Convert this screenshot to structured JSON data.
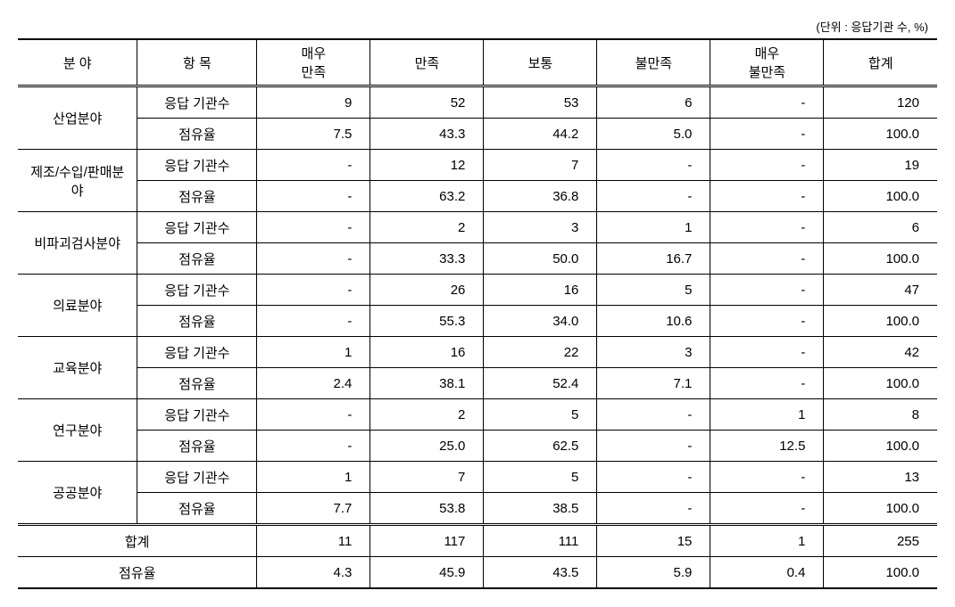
{
  "unit_caption": "(단위 : 응답기관 수, %)",
  "columns": {
    "category": "분 야",
    "item": "항 목",
    "very_satisfied": "매우\n만족",
    "satisfied": "만족",
    "normal": "보통",
    "dissatisfied": "불만족",
    "very_dissatisfied": "매우\n불만족",
    "total": "합계"
  },
  "row_labels": {
    "count": "응답 기관수",
    "share": "점유율"
  },
  "categories": [
    {
      "name": "산업분야",
      "count": [
        "9",
        "52",
        "53",
        "6",
        "-",
        "120"
      ],
      "share": [
        "7.5",
        "43.3",
        "44.2",
        "5.0",
        "-",
        "100.0"
      ]
    },
    {
      "name": "제조/수입/판매분야",
      "count": [
        "-",
        "12",
        "7",
        "-",
        "-",
        "19"
      ],
      "share": [
        "-",
        "63.2",
        "36.8",
        "-",
        "-",
        "100.0"
      ]
    },
    {
      "name": "비파괴검사분야",
      "count": [
        "-",
        "2",
        "3",
        "1",
        "-",
        "6"
      ],
      "share": [
        "-",
        "33.3",
        "50.0",
        "16.7",
        "-",
        "100.0"
      ]
    },
    {
      "name": "의료분야",
      "count": [
        "-",
        "26",
        "16",
        "5",
        "-",
        "47"
      ],
      "share": [
        "-",
        "55.3",
        "34.0",
        "10.6",
        "-",
        "100.0"
      ]
    },
    {
      "name": "교육분야",
      "count": [
        "1",
        "16",
        "22",
        "3",
        "-",
        "42"
      ],
      "share": [
        "2.4",
        "38.1",
        "52.4",
        "7.1",
        "-",
        "100.0"
      ]
    },
    {
      "name": "연구분야",
      "count": [
        "-",
        "2",
        "5",
        "-",
        "1",
        "8"
      ],
      "share": [
        "-",
        "25.0",
        "62.5",
        "-",
        "12.5",
        "100.0"
      ]
    },
    {
      "name": "공공분야",
      "count": [
        "1",
        "7",
        "5",
        "-",
        "-",
        "13"
      ],
      "share": [
        "7.7",
        "53.8",
        "38.5",
        "-",
        "-",
        "100.0"
      ]
    }
  ],
  "summary": {
    "total_label": "합계",
    "share_label": "점유율",
    "count": [
      "11",
      "117",
      "111",
      "15",
      "1",
      "255"
    ],
    "share": [
      "4.3",
      "45.9",
      "43.5",
      "5.9",
      "0.4",
      "100.0"
    ]
  }
}
